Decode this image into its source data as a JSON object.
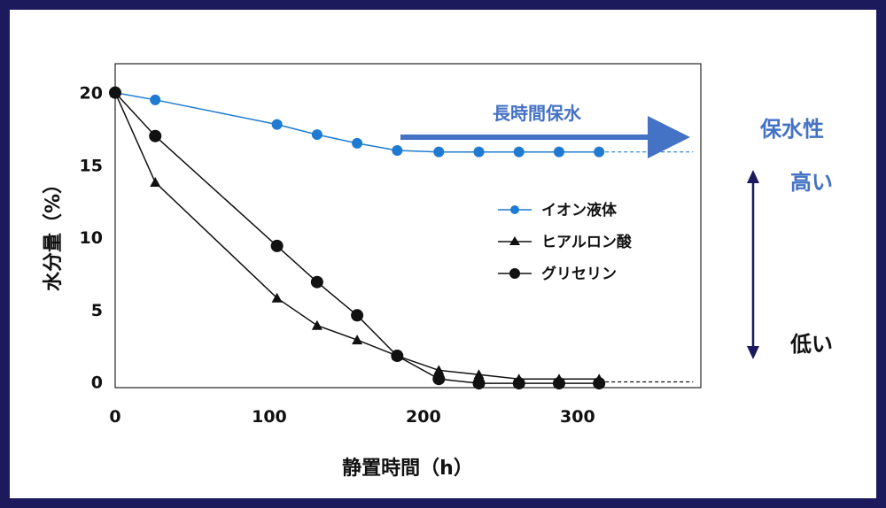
{
  "chart_data": {
    "type": "line",
    "xlabel": "静置時間（h）",
    "ylabel": "水分量（%）",
    "xlim": [
      0,
      380
    ],
    "ylim": [
      -0.4,
      22
    ],
    "xticks": [
      0,
      100,
      200,
      300
    ],
    "yticks": [
      0,
      5,
      10,
      15,
      20
    ],
    "grid": false,
    "legend_position": "right-center",
    "series": [
      {
        "name": "イオン液体",
        "color": "#1f7bd1",
        "marker": "circle",
        "x": [
          0,
          26,
          105,
          131,
          157,
          183,
          210,
          236,
          262,
          288,
          314
        ],
        "y": [
          20,
          19.5,
          17.8,
          17.1,
          16.5,
          16.0,
          15.9,
          15.9,
          15.9,
          15.9,
          15.9
        ],
        "extension": {
          "x_to": 375,
          "y": 15.9,
          "style": "dashed"
        }
      },
      {
        "name": "ヒアルロン酸",
        "color": "#111111",
        "marker": "triangle",
        "x": [
          0,
          26,
          105,
          131,
          157,
          183,
          210,
          236,
          262,
          288,
          314
        ],
        "y": [
          20,
          13.8,
          5.8,
          3.9,
          2.9,
          1.8,
          0.8,
          0.5,
          0.2,
          0.2,
          0.2
        ],
        "extension": {
          "x_to": 375,
          "y": 0.0,
          "style": "dashed"
        }
      },
      {
        "name": "グリセリン",
        "color": "#111111",
        "marker": "circle",
        "x": [
          0,
          26,
          105,
          131,
          157,
          183,
          210,
          236,
          262,
          288,
          314
        ],
        "y": [
          20,
          17.0,
          9.4,
          6.9,
          4.6,
          1.8,
          0.2,
          -0.1,
          -0.1,
          -0.1,
          -0.1
        ]
      }
    ],
    "annotations": [
      {
        "text": "長時間保水",
        "color": "#4472c4"
      }
    ]
  },
  "side_scale": {
    "title": "保水性",
    "high": "高い",
    "low": "低い",
    "title_color": "#4472c4",
    "arrow_color": "#1c1a5c"
  }
}
